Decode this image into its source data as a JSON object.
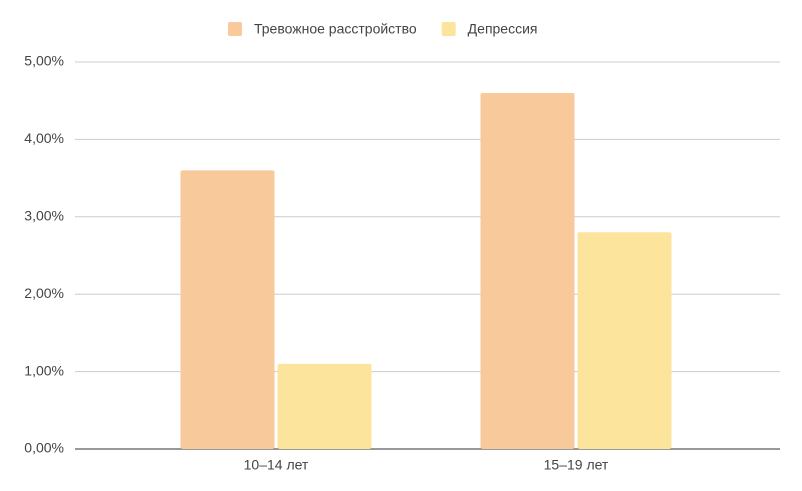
{
  "chart_data": {
    "type": "bar",
    "categories": [
      "10–14 лет",
      "15–19 лет"
    ],
    "series": [
      {
        "name": "Тревожное расстройство",
        "color": "#f7c99b",
        "values": [
          3.6,
          4.6
        ]
      },
      {
        "name": "Депрессия",
        "color": "#fde49c",
        "values": [
          1.1,
          2.8
        ]
      }
    ],
    "ylim": [
      0,
      5
    ],
    "yticks": [
      {
        "value": 0,
        "label": "0,00%"
      },
      {
        "value": 1,
        "label": "1,00%"
      },
      {
        "value": 2,
        "label": "2,00%"
      },
      {
        "value": 3,
        "label": "3,00%"
      },
      {
        "value": 4,
        "label": "4,00%"
      },
      {
        "value": 5,
        "label": "5,00%"
      }
    ],
    "grid": true,
    "legend": "top"
  }
}
